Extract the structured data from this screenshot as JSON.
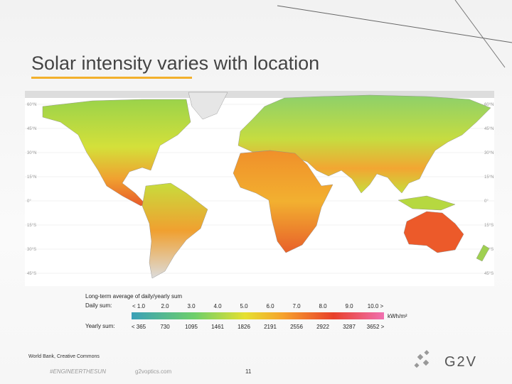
{
  "title": "Solar intensity varies with location",
  "map": {
    "latitude_labels": [
      "60°N",
      "45°N",
      "30°N",
      "15°N",
      "0°",
      "15°S",
      "30°S",
      "45°S"
    ],
    "legend": {
      "title": "Long-term average of daily/yearly sum",
      "daily_label": "Daily sum:",
      "yearly_label": "Yearly sum:",
      "daily_values": [
        "< 1.0",
        "2.0",
        "3.0",
        "4.0",
        "5.0",
        "6.0",
        "7.0",
        "8.0",
        "9.0",
        "10.0 >"
      ],
      "yearly_values": [
        "< 365",
        "730",
        "1095",
        "1461",
        "1826",
        "2191",
        "2556",
        "2922",
        "3287",
        "3652 >"
      ],
      "unit": "kWh/m²"
    }
  },
  "footer": {
    "source": "World Bank, Creative Commons",
    "hashtag": "#ENGINEERTHESUN",
    "website": "g2voptics.com",
    "page": "11",
    "logo": "G2V"
  }
}
